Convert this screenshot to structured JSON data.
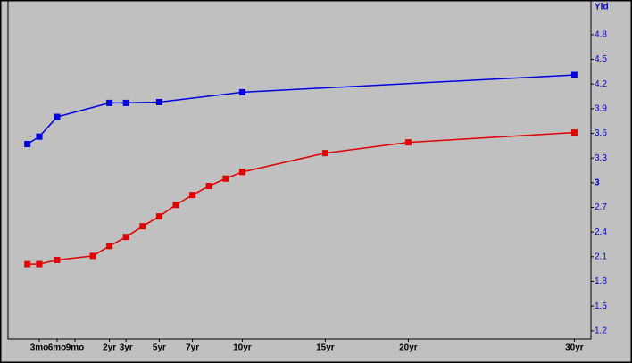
{
  "chart_data": {
    "type": "line",
    "y_label": "Yld",
    "series": [
      {
        "color": "#0000e0",
        "x": [
          0.0833,
          0.25,
          0.5,
          2,
          3,
          5,
          10,
          30
        ],
        "values": [
          3.47,
          3.56,
          3.8,
          3.97,
          3.97,
          3.98,
          4.1,
          4.31
        ]
      },
      {
        "color": "#e00000",
        "x": [
          0.0833,
          0.25,
          0.5,
          1,
          2,
          3,
          4,
          5,
          6,
          7,
          8,
          9,
          10,
          15,
          20,
          30
        ],
        "values": [
          2.01,
          2.01,
          2.06,
          2.11,
          2.23,
          2.34,
          2.47,
          2.59,
          2.73,
          2.85,
          2.96,
          3.05,
          3.13,
          3.36,
          3.49,
          3.61
        ]
      }
    ],
    "xticks": [
      {
        "value": 0.25,
        "label": "3mo"
      },
      {
        "value": 0.5,
        "label": "6mo"
      },
      {
        "value": 0.75,
        "label": "9mo"
      },
      {
        "value": 2,
        "label": "2yr"
      },
      {
        "value": 3,
        "label": "3yr"
      },
      {
        "value": 5,
        "label": "5yr"
      },
      {
        "value": 7,
        "label": "7yr"
      },
      {
        "value": 10,
        "label": "10yr"
      },
      {
        "value": 15,
        "label": "15yr"
      },
      {
        "value": 20,
        "label": "20yr"
      },
      {
        "value": 30,
        "label": "30yr"
      }
    ],
    "ylim": [
      1.1,
      5.2
    ],
    "yticks": [
      1.2,
      1.5,
      1.8,
      2.1,
      2.4,
      2.7,
      3,
      3.3,
      3.6,
      3.9,
      4.2,
      4.5,
      4.8
    ],
    "axis_side": "right",
    "marker": "square"
  }
}
